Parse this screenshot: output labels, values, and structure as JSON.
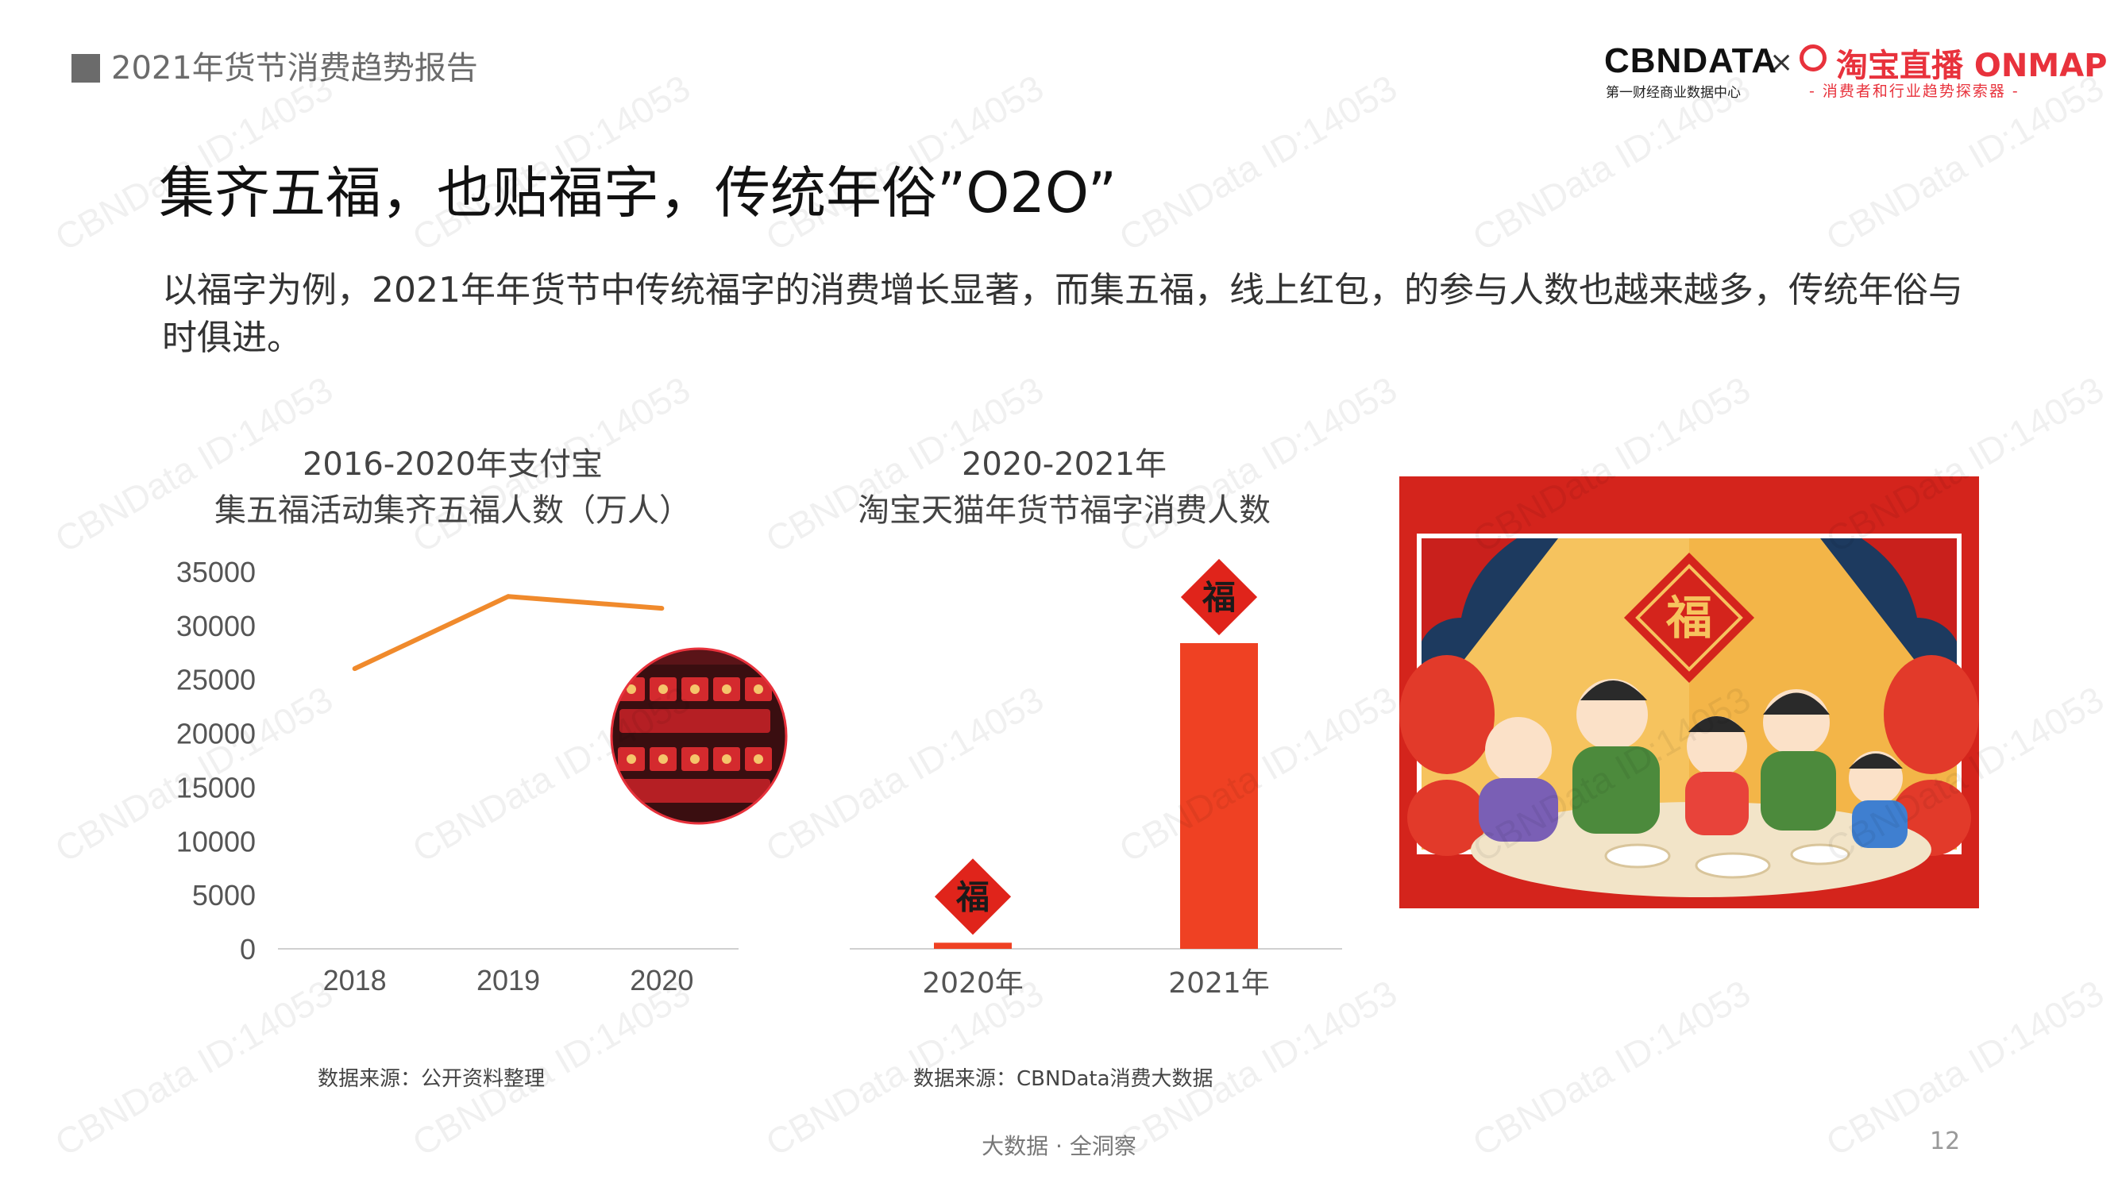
{
  "header": {
    "report_title": "2021年货节消费趋势报告",
    "logo_cbn": "CBNDATA",
    "logo_cbn_sub": "第一财经商业数据中心",
    "logo_x": "×",
    "logo_taobao": "淘宝直播 ONMAP",
    "logo_taobao_sub": "- 消费者和行业趋势探索器 -"
  },
  "main": {
    "heading": "集齐五福，也贴福字，传统年俗”O2O”",
    "intro": "以福字为例，2021年年货节中传统福字的消费增长显著，而集五福，线上红包，的参与人数也越来越多，传统年俗与时俱进。"
  },
  "chart_left": {
    "title_line1": "2016-2020年支付宝",
    "title_line2": "集五福活动集齐五福人数（万人）",
    "source": "数据来源：公开资料整理"
  },
  "chart_right": {
    "title_line1": "2020-2021年",
    "title_line2": "淘宝天猫年货节福字消费人数",
    "source": "数据来源：CBNData消费大数据",
    "badge_text": "福"
  },
  "chart_data": [
    {
      "type": "line",
      "title": "2016-2020年支付宝 集五福活动集齐五福人数（万人）",
      "categories": [
        "2018",
        "2019",
        "2020"
      ],
      "series": [
        {
          "values": [
            26000,
            32700,
            31600
          ]
        }
      ],
      "ylim": [
        0,
        35000
      ],
      "yticks": [
        35000,
        30000,
        25000,
        20000,
        15000,
        10000,
        5000,
        0
      ],
      "colors": {
        "line": "#f08a2c"
      }
    },
    {
      "type": "bar",
      "title": "2020-2021年 淘宝天猫年货节福字消费人数",
      "categories": [
        "2020年",
        "2021年"
      ],
      "values": [
        2,
        100
      ],
      "note": "values are relative; no y-axis printed",
      "colors": {
        "bar": "#ef4123"
      }
    }
  ],
  "illustration_badge": "福",
  "footer": {
    "tagline": "大数据 · 全洞察",
    "page_number": "12"
  },
  "watermark": "CBNData ID:14053"
}
